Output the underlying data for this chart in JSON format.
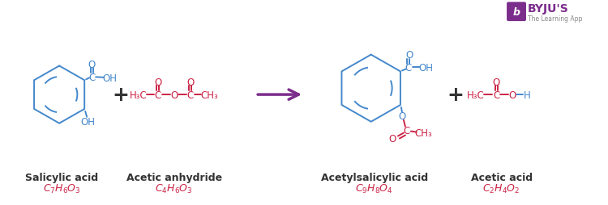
{
  "bg_color": "#ffffff",
  "blue_color": "#4488cc",
  "red_color": "#cc2244",
  "purple_color": "#7b2d8b",
  "black_color": "#333333",
  "byju_purple": "#7b2d8b",
  "label1_name": "Salicylic acid",
  "label1_formula": "C_{7}H_{6}O_{3}",
  "label2_name": "Acetic anhydride",
  "label2_formula": "C_{4}H_{6}O_{3}",
  "label3_name": "Acetylsalicylic acid",
  "label3_formula": "C_{9}H_{8}O_{4}",
  "label4_name": "Acetic acid",
  "label4_formula": "C_{2}H_{4}O_{2}"
}
